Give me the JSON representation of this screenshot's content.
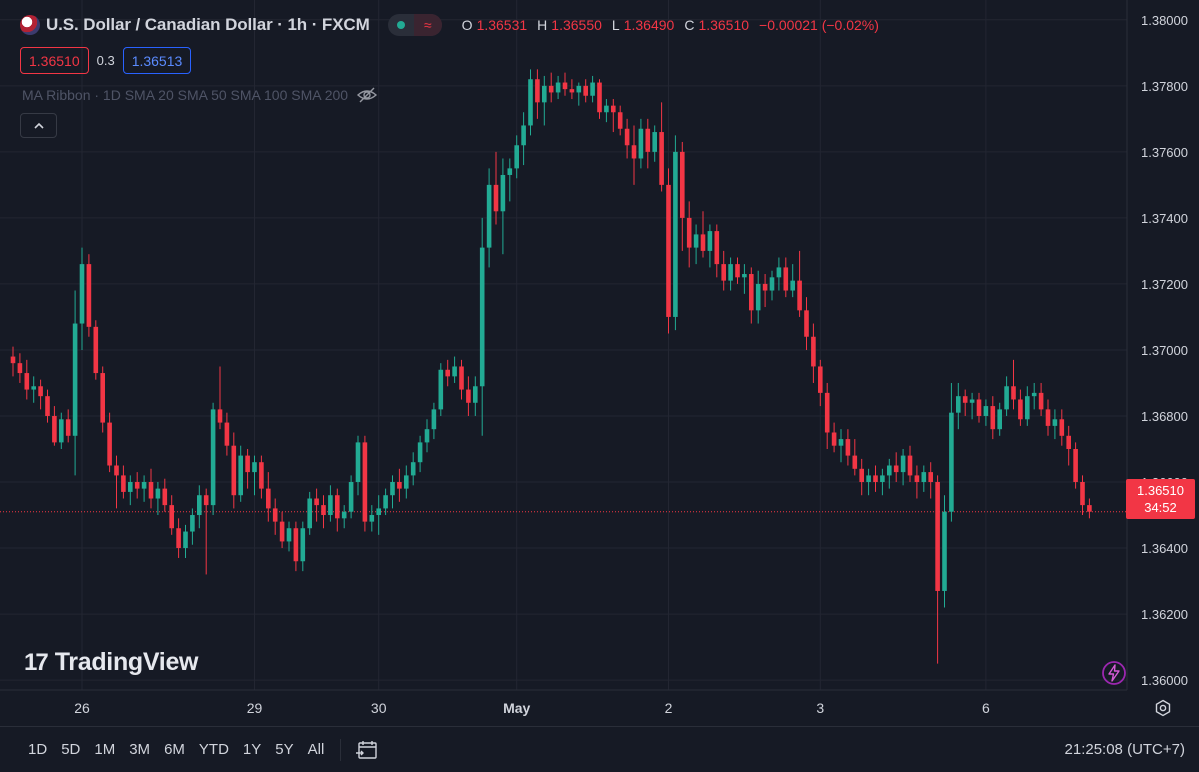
{
  "header": {
    "title": "U.S. Dollar / Canadian Dollar · 1h · FXCM",
    "pill_symbol": "≈",
    "ohlc": [
      {
        "k": "O",
        "v": "1.36531"
      },
      {
        "k": "H",
        "v": "1.36550"
      },
      {
        "k": "L",
        "v": "1.36490"
      },
      {
        "k": "C",
        "v": "1.36510"
      },
      {
        "k": "",
        "v": "−0.00021 (−0.02%)"
      }
    ]
  },
  "quote": {
    "sell": "1.36510",
    "spread": "0.3",
    "buy": "1.36513"
  },
  "indicator": {
    "label": "MA Ribbon · 1D SMA 20 SMA 50 SMA 100 SMA 200"
  },
  "watermark": {
    "logo": "17",
    "text": "TradingView"
  },
  "price_tag": {
    "price": "1.36510",
    "countdown": "34:52"
  },
  "timeframes": [
    "1D",
    "5D",
    "1M",
    "3M",
    "6M",
    "YTD",
    "1Y",
    "5Y",
    "All"
  ],
  "clock": "21:25:08 (UTC+7)",
  "colors": {
    "up": "#22ab94",
    "down": "#f23645",
    "bg": "#161a25",
    "grid": "#232632"
  },
  "chart_data": {
    "type": "candlestick",
    "y_ticks": [
      "1.38000",
      "1.37800",
      "1.37600",
      "1.37400",
      "1.37200",
      "1.37000",
      "1.36800",
      "1.36600",
      "1.36400",
      "1.36200",
      "1.36000"
    ],
    "ylim": [
      1.3597,
      1.3806
    ],
    "x_ticks": [
      {
        "label": "26",
        "index": 10
      },
      {
        "label": "29",
        "index": 35
      },
      {
        "label": "30",
        "index": 53
      },
      {
        "label": "May",
        "index": 73
      },
      {
        "label": "2",
        "index": 95
      },
      {
        "label": "3",
        "index": 117
      },
      {
        "label": "6",
        "index": 141
      }
    ],
    "last_price": 1.3651,
    "candles": [
      [
        1.3698,
        1.3701,
        1.3692,
        1.3696
      ],
      [
        1.3696,
        1.3699,
        1.369,
        1.3693
      ],
      [
        1.3693,
        1.3697,
        1.3685,
        1.3688
      ],
      [
        1.3688,
        1.3692,
        1.3684,
        1.3689
      ],
      [
        1.3689,
        1.3691,
        1.3682,
        1.3686
      ],
      [
        1.3686,
        1.3688,
        1.3678,
        1.368
      ],
      [
        1.368,
        1.3683,
        1.3671,
        1.3672
      ],
      [
        1.3672,
        1.3681,
        1.367,
        1.3679
      ],
      [
        1.3679,
        1.3682,
        1.3672,
        1.3674
      ],
      [
        1.3674,
        1.3718,
        1.3662,
        1.3708
      ],
      [
        1.3708,
        1.3731,
        1.37,
        1.3726
      ],
      [
        1.3726,
        1.3729,
        1.3704,
        1.3707
      ],
      [
        1.3707,
        1.3709,
        1.3691,
        1.3693
      ],
      [
        1.3693,
        1.3695,
        1.3675,
        1.3678
      ],
      [
        1.3678,
        1.3681,
        1.3663,
        1.3665
      ],
      [
        1.3665,
        1.3668,
        1.3652,
        1.3662
      ],
      [
        1.3662,
        1.3665,
        1.3655,
        1.3657
      ],
      [
        1.3657,
        1.3662,
        1.3653,
        1.366
      ],
      [
        1.366,
        1.3663,
        1.3655,
        1.3658
      ],
      [
        1.3658,
        1.3662,
        1.3654,
        1.366
      ],
      [
        1.366,
        1.3664,
        1.3652,
        1.3655
      ],
      [
        1.3655,
        1.366,
        1.365,
        1.3658
      ],
      [
        1.3658,
        1.3661,
        1.3651,
        1.3653
      ],
      [
        1.3653,
        1.3656,
        1.3644,
        1.3646
      ],
      [
        1.3646,
        1.3649,
        1.3637,
        1.364
      ],
      [
        1.364,
        1.3647,
        1.3637,
        1.3645
      ],
      [
        1.3645,
        1.3652,
        1.3641,
        1.365
      ],
      [
        1.365,
        1.3659,
        1.3646,
        1.3656
      ],
      [
        1.3656,
        1.3658,
        1.3632,
        1.3653
      ],
      [
        1.3653,
        1.3684,
        1.365,
        1.3682
      ],
      [
        1.3682,
        1.3695,
        1.3676,
        1.3678
      ],
      [
        1.3678,
        1.3681,
        1.3668,
        1.3671
      ],
      [
        1.3671,
        1.3675,
        1.3652,
        1.3656
      ],
      [
        1.3656,
        1.3671,
        1.3654,
        1.3668
      ],
      [
        1.3668,
        1.367,
        1.3658,
        1.3663
      ],
      [
        1.3663,
        1.3668,
        1.3656,
        1.3666
      ],
      [
        1.3666,
        1.3668,
        1.3655,
        1.3658
      ],
      [
        1.3658,
        1.3663,
        1.3648,
        1.3652
      ],
      [
        1.3652,
        1.3655,
        1.3644,
        1.3648
      ],
      [
        1.3648,
        1.3651,
        1.364,
        1.3642
      ],
      [
        1.3642,
        1.3648,
        1.3639,
        1.3646
      ],
      [
        1.3646,
        1.3648,
        1.3633,
        1.3636
      ],
      [
        1.3636,
        1.3648,
        1.3633,
        1.3646
      ],
      [
        1.3646,
        1.3657,
        1.3644,
        1.3655
      ],
      [
        1.3655,
        1.3658,
        1.3648,
        1.3653
      ],
      [
        1.3653,
        1.3656,
        1.3646,
        1.365
      ],
      [
        1.365,
        1.3659,
        1.3648,
        1.3656
      ],
      [
        1.3656,
        1.3658,
        1.3645,
        1.3649
      ],
      [
        1.3649,
        1.3653,
        1.3646,
        1.3651
      ],
      [
        1.3651,
        1.3662,
        1.3649,
        1.366
      ],
      [
        1.366,
        1.3674,
        1.3656,
        1.3672
      ],
      [
        1.3672,
        1.3674,
        1.3645,
        1.3648
      ],
      [
        1.3648,
        1.3653,
        1.3645,
        1.365
      ],
      [
        1.365,
        1.3656,
        1.3644,
        1.3652
      ],
      [
        1.3652,
        1.3658,
        1.365,
        1.3656
      ],
      [
        1.3656,
        1.3662,
        1.3652,
        1.366
      ],
      [
        1.366,
        1.3664,
        1.3654,
        1.3658
      ],
      [
        1.3658,
        1.3665,
        1.3655,
        1.3662
      ],
      [
        1.3662,
        1.3669,
        1.3659,
        1.3666
      ],
      [
        1.3666,
        1.3674,
        1.3663,
        1.3672
      ],
      [
        1.3672,
        1.3679,
        1.3669,
        1.3676
      ],
      [
        1.3676,
        1.3684,
        1.3673,
        1.3682
      ],
      [
        1.3682,
        1.3696,
        1.368,
        1.3694
      ],
      [
        1.3694,
        1.3697,
        1.3689,
        1.3692
      ],
      [
        1.3692,
        1.3698,
        1.369,
        1.3695
      ],
      [
        1.3695,
        1.3697,
        1.3685,
        1.3688
      ],
      [
        1.3688,
        1.3692,
        1.368,
        1.3684
      ],
      [
        1.3684,
        1.3692,
        1.368,
        1.3689
      ],
      [
        1.3689,
        1.374,
        1.3674,
        1.3731
      ],
      [
        1.3731,
        1.3755,
        1.3725,
        1.375
      ],
      [
        1.375,
        1.376,
        1.3738,
        1.3742
      ],
      [
        1.3742,
        1.3758,
        1.3729,
        1.3753
      ],
      [
        1.3753,
        1.3758,
        1.3745,
        1.3755
      ],
      [
        1.3755,
        1.3765,
        1.3752,
        1.3762
      ],
      [
        1.3762,
        1.3772,
        1.3756,
        1.3768
      ],
      [
        1.3768,
        1.3785,
        1.3765,
        1.3782
      ],
      [
        1.3782,
        1.3785,
        1.377,
        1.3775
      ],
      [
        1.3775,
        1.3783,
        1.3768,
        1.378
      ],
      [
        1.378,
        1.3784,
        1.3775,
        1.3778
      ],
      [
        1.3778,
        1.3783,
        1.3776,
        1.3781
      ],
      [
        1.3781,
        1.3784,
        1.3777,
        1.3779
      ],
      [
        1.3779,
        1.3782,
        1.3776,
        1.3778
      ],
      [
        1.3778,
        1.3781,
        1.3774,
        1.378
      ],
      [
        1.378,
        1.3782,
        1.3775,
        1.3777
      ],
      [
        1.3777,
        1.3783,
        1.3775,
        1.3781
      ],
      [
        1.3781,
        1.3782,
        1.377,
        1.3772
      ],
      [
        1.3772,
        1.3776,
        1.3769,
        1.3774
      ],
      [
        1.3774,
        1.3776,
        1.3766,
        1.3772
      ],
      [
        1.3772,
        1.3774,
        1.3765,
        1.3767
      ],
      [
        1.3767,
        1.377,
        1.3758,
        1.3762
      ],
      [
        1.3762,
        1.3768,
        1.375,
        1.3758
      ],
      [
        1.3758,
        1.377,
        1.3755,
        1.3767
      ],
      [
        1.3767,
        1.377,
        1.3755,
        1.376
      ],
      [
        1.376,
        1.3768,
        1.3757,
        1.3766
      ],
      [
        1.3766,
        1.3775,
        1.3748,
        1.375
      ],
      [
        1.375,
        1.3755,
        1.3705,
        1.371
      ],
      [
        1.371,
        1.3765,
        1.3706,
        1.376
      ],
      [
        1.376,
        1.3763,
        1.373,
        1.374
      ],
      [
        1.374,
        1.3745,
        1.3725,
        1.3731
      ],
      [
        1.3731,
        1.3738,
        1.3726,
        1.3735
      ],
      [
        1.3735,
        1.3742,
        1.3728,
        1.373
      ],
      [
        1.373,
        1.3738,
        1.3725,
        1.3736
      ],
      [
        1.3736,
        1.3738,
        1.3722,
        1.3726
      ],
      [
        1.3726,
        1.373,
        1.3718,
        1.3721
      ],
      [
        1.3721,
        1.3728,
        1.3718,
        1.3726
      ],
      [
        1.3726,
        1.3728,
        1.372,
        1.3722
      ],
      [
        1.3722,
        1.3726,
        1.3717,
        1.3723
      ],
      [
        1.3723,
        1.3725,
        1.3708,
        1.3712
      ],
      [
        1.3712,
        1.3724,
        1.3708,
        1.372
      ],
      [
        1.372,
        1.3723,
        1.3713,
        1.3718
      ],
      [
        1.3718,
        1.3724,
        1.3715,
        1.3722
      ],
      [
        1.3722,
        1.3728,
        1.3718,
        1.3725
      ],
      [
        1.3725,
        1.3728,
        1.3716,
        1.3718
      ],
      [
        1.3718,
        1.3726,
        1.3716,
        1.3721
      ],
      [
        1.3721,
        1.373,
        1.371,
        1.3712
      ],
      [
        1.3712,
        1.3716,
        1.37,
        1.3704
      ],
      [
        1.3704,
        1.3708,
        1.369,
        1.3695
      ],
      [
        1.3695,
        1.3697,
        1.3683,
        1.3687
      ],
      [
        1.3687,
        1.369,
        1.367,
        1.3675
      ],
      [
        1.3675,
        1.3678,
        1.3669,
        1.3671
      ],
      [
        1.3671,
        1.3676,
        1.3666,
        1.3673
      ],
      [
        1.3673,
        1.3676,
        1.3665,
        1.3668
      ],
      [
        1.3668,
        1.3673,
        1.3662,
        1.3664
      ],
      [
        1.3664,
        1.3667,
        1.3656,
        1.366
      ],
      [
        1.366,
        1.3664,
        1.3656,
        1.3662
      ],
      [
        1.3662,
        1.3665,
        1.3657,
        1.366
      ],
      [
        1.366,
        1.3664,
        1.3656,
        1.3662
      ],
      [
        1.3662,
        1.3667,
        1.3658,
        1.3665
      ],
      [
        1.3665,
        1.3669,
        1.366,
        1.3663
      ],
      [
        1.3663,
        1.367,
        1.3659,
        1.3668
      ],
      [
        1.3668,
        1.3671,
        1.366,
        1.3662
      ],
      [
        1.3662,
        1.3665,
        1.3655,
        1.366
      ],
      [
        1.366,
        1.3665,
        1.3657,
        1.3663
      ],
      [
        1.3663,
        1.3666,
        1.3655,
        1.366
      ],
      [
        1.366,
        1.3662,
        1.3605,
        1.3627
      ],
      [
        1.3627,
        1.3656,
        1.3622,
        1.3651
      ],
      [
        1.3651,
        1.369,
        1.3648,
        1.3681
      ],
      [
        1.3681,
        1.369,
        1.3676,
        1.3686
      ],
      [
        1.3686,
        1.3688,
        1.368,
        1.3684
      ],
      [
        1.3684,
        1.3687,
        1.3679,
        1.3685
      ],
      [
        1.3685,
        1.3687,
        1.3678,
        1.368
      ],
      [
        1.368,
        1.3685,
        1.3677,
        1.3683
      ],
      [
        1.3683,
        1.3686,
        1.3673,
        1.3676
      ],
      [
        1.3676,
        1.3684,
        1.3674,
        1.3682
      ],
      [
        1.3682,
        1.3692,
        1.368,
        1.3689
      ],
      [
        1.3689,
        1.3697,
        1.3682,
        1.3685
      ],
      [
        1.3685,
        1.3688,
        1.3677,
        1.3679
      ],
      [
        1.3679,
        1.3689,
        1.3677,
        1.3686
      ],
      [
        1.3686,
        1.369,
        1.3682,
        1.3687
      ],
      [
        1.3687,
        1.369,
        1.368,
        1.3682
      ],
      [
        1.3682,
        1.3685,
        1.3674,
        1.3677
      ],
      [
        1.3677,
        1.3682,
        1.3673,
        1.3679
      ],
      [
        1.3679,
        1.3682,
        1.3671,
        1.3674
      ],
      [
        1.3674,
        1.3677,
        1.3665,
        1.367
      ],
      [
        1.367,
        1.3672,
        1.3658,
        1.366
      ],
      [
        1.366,
        1.3662,
        1.365,
        1.3653
      ],
      [
        1.3653,
        1.3655,
        1.3649,
        1.3651
      ]
    ]
  }
}
